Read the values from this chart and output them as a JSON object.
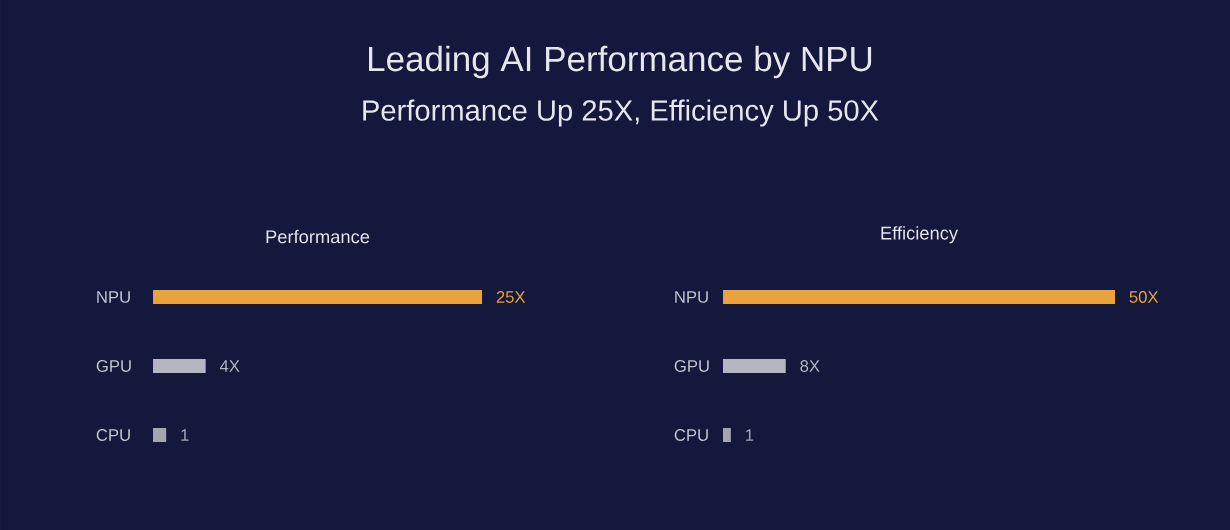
{
  "chart_data": [
    {
      "type": "bar",
      "orientation": "horizontal",
      "title": "Performance",
      "annotations": [
        "Leading AI Performance by NPU",
        "Performance Up 25X, Efficiency Up 50X"
      ],
      "categories": [
        "NPU",
        "GPU",
        "CPU"
      ],
      "values": [
        25,
        4,
        1
      ],
      "colors": [
        "#e9a33c",
        "#b4b6c2",
        "#a4a6b2"
      ],
      "value_labels": [
        "25X",
        "4X",
        "1"
      ]
    },
    {
      "type": "bar",
      "orientation": "horizontal",
      "title": "Efficiency",
      "categories": [
        "NPU",
        "GPU",
        "CPU"
      ],
      "values": [
        50,
        8,
        1
      ],
      "colors": [
        "#e9a33c",
        "#b4b6c2",
        "#a4a6b2"
      ],
      "value_labels": [
        "50X",
        "8X",
        "1"
      ]
    }
  ]
}
